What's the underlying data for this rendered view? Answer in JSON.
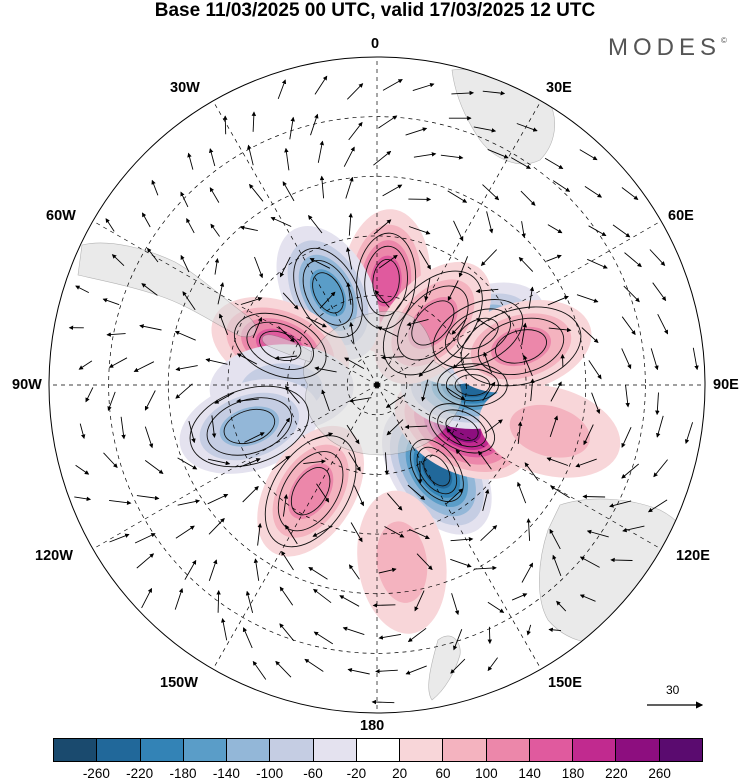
{
  "title": "Base 11/03/2025 00 UTC, valid 17/03/2025 12 UTC",
  "brand": "MODES",
  "brand_mark": "©",
  "longitude_labels": {
    "top": "0",
    "bottom": "180",
    "left": "90W",
    "right": "90E",
    "nw30": "30W",
    "ne30": "30E",
    "w60": "60W",
    "e60": "60E",
    "w120": "120W",
    "e120": "120E",
    "w150": "150W",
    "e150": "150E"
  },
  "reference_vector_label": "30",
  "colorbar": {
    "colors": [
      "#1a4a6e",
      "#21689a",
      "#3383b6",
      "#5a9dc8",
      "#93b7d8",
      "#c5cde3",
      "#e4e2ef",
      "#ffffff",
      "#f8d6d9",
      "#f4b3bf",
      "#ec87aa",
      "#e05a9e",
      "#c12a8f",
      "#8d0e7f",
      "#5a0b6f"
    ],
    "tick_labels": [
      "-260",
      "-220",
      "-180",
      "-140",
      "-100",
      "-60",
      "-20",
      "20",
      "60",
      "100",
      "140",
      "180",
      "220",
      "260"
    ]
  },
  "anomaly_features": [
    {
      "lon": 5,
      "lat": -55,
      "value": 150
    },
    {
      "lon": -28,
      "lat": -55,
      "value": -160
    },
    {
      "lon": -68,
      "lat": -55,
      "value": 150
    },
    {
      "lon": -92,
      "lat": -58,
      "value": -80
    },
    {
      "lon": -108,
      "lat": -45,
      "value": -110
    },
    {
      "lon": -148,
      "lat": -48,
      "value": 120
    },
    {
      "lon": 145,
      "lat": -55,
      "value": -240
    },
    {
      "lon": 117,
      "lat": -58,
      "value": 210
    },
    {
      "lon": 90,
      "lat": -58,
      "value": -230
    },
    {
      "lon": 63,
      "lat": -52,
      "value": -150
    },
    {
      "lon": 75,
      "lat": -40,
      "value": 120
    },
    {
      "lon": 42,
      "lat": -62,
      "value": 110
    },
    {
      "lon": 105,
      "lat": -30,
      "value": 70
    },
    {
      "lon": 172,
      "lat": -30,
      "value": 60
    }
  ]
}
